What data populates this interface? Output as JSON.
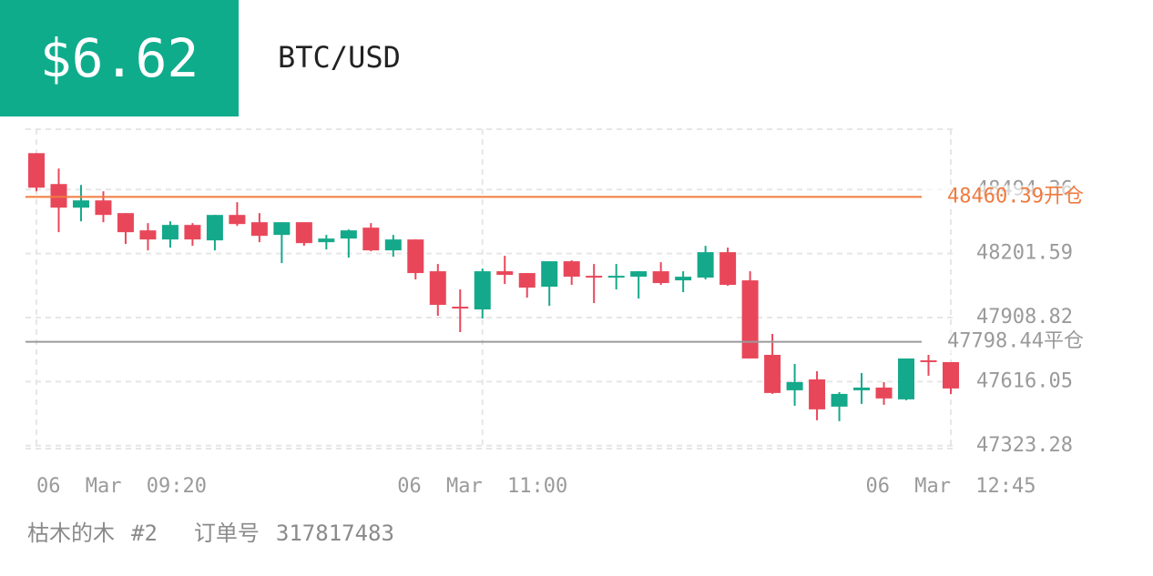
{
  "header": {
    "price": "$6.62",
    "pair": "BTC/USD"
  },
  "footer": {
    "user": "枯木的木",
    "tag": "#2",
    "order_label": "订单号",
    "order_no": "317817483"
  },
  "chart_data": {
    "type": "candlestick",
    "up_color": "#14a98a",
    "down_color": "#e8475a",
    "grid": true,
    "categories": [
      "06 Mar 09:20",
      null,
      null,
      null,
      null,
      null,
      null,
      null,
      null,
      null,
      null,
      null,
      null,
      null,
      null,
      null,
      null,
      null,
      null,
      null,
      "06 Mar 11:00",
      null,
      null,
      null,
      null,
      null,
      null,
      null,
      null,
      null,
      null,
      null,
      null,
      null,
      null,
      null,
      null,
      null,
      null,
      null,
      null,
      "06 Mar 12:45"
    ],
    "open": [
      48660.55,
      48519.4,
      48411.4,
      48444.6,
      48386.5,
      48307.6,
      48266.0,
      48332.5,
      48261.9,
      48378.2,
      48344.9,
      48286.8,
      48344.9,
      48253.6,
      48270.2,
      48320.0,
      48216.2,
      48266.0,
      48120.7,
      47958.7,
      47946.3,
      48120.7,
      48112.4,
      48050.1,
      48166.4,
      48099.9,
      48091.6,
      48095.8,
      48120.7,
      48079.1,
      48091.6,
      48207.9,
      48079.1,
      47738.6,
      47576.6,
      47626.5,
      47501.9,
      47576.6,
      47589.1,
      47535.1,
      47713.7,
      47705.4
    ],
    "high": [
      48660.55,
      48590.0,
      48515.2,
      48486.1,
      48386.5,
      48340.8,
      48349.1,
      48340.8,
      48378.2,
      48436.3,
      48386.5,
      48344.9,
      48344.9,
      48286.8,
      48311.7,
      48340.8,
      48286.8,
      48266.0,
      48153.9,
      48037.6,
      48133.1,
      48191.3,
      48112.4,
      48166.4,
      48170.5,
      48153.9,
      48153.9,
      48120.7,
      48162.2,
      48120.7,
      48237.0,
      48228.7,
      48120.7,
      47834.1,
      47697.1,
      47663.8,
      47568.3,
      47655.5,
      47614.0,
      47722.0,
      47738.6,
      47705.4
    ],
    "low": [
      48486.1,
      48299.3,
      48349.1,
      48344.9,
      48245.3,
      48216.2,
      48228.7,
      48237.0,
      48216.2,
      48328.3,
      48253.6,
      48158.1,
      48237.0,
      48220.3,
      48183.0,
      48212.0,
      48187.1,
      48083.3,
      47917.2,
      47842.4,
      47904.7,
      48062.5,
      48000.2,
      47962.9,
      48058.4,
      47975.3,
      48037.6,
      47996.1,
      48058.4,
      48025.2,
      48083.3,
      48054.2,
      47722.0,
      47560.0,
      47506.0,
      47439.6,
      47435.4,
      47514.3,
      47510.2,
      47531.0,
      47643.1,
      47560.0
    ],
    "close": [
      48502.75,
      48411.4,
      48444.6,
      48378.2,
      48299.3,
      48266.0,
      48332.5,
      48266.0,
      48378.2,
      48336.6,
      48282.6,
      48344.9,
      48249.4,
      48270.2,
      48307.6,
      48216.2,
      48266.0,
      48112.4,
      47967.0,
      47950.4,
      48120.7,
      48104.1,
      48045.9,
      48166.4,
      48095.8,
      48091.6,
      48099.9,
      48120.7,
      48066.7,
      48095.8,
      48207.9,
      48058.4,
      47722.0,
      47564.2,
      47614.0,
      47489.4,
      47560.0,
      47589.1,
      47539.3,
      47722.0,
      47705.4,
      47584.9
    ],
    "ylim": [
      47310,
      48770
    ],
    "yticks": [
      47323.28,
      47616.05,
      47908.82,
      48201.59,
      48494.36
    ],
    "lines": [
      {
        "value": 48460.39,
        "label": "开仓",
        "color": "#f07b3f"
      },
      {
        "value": 47798.44,
        "label": "平仓",
        "color": "#9a9a9a"
      }
    ]
  }
}
